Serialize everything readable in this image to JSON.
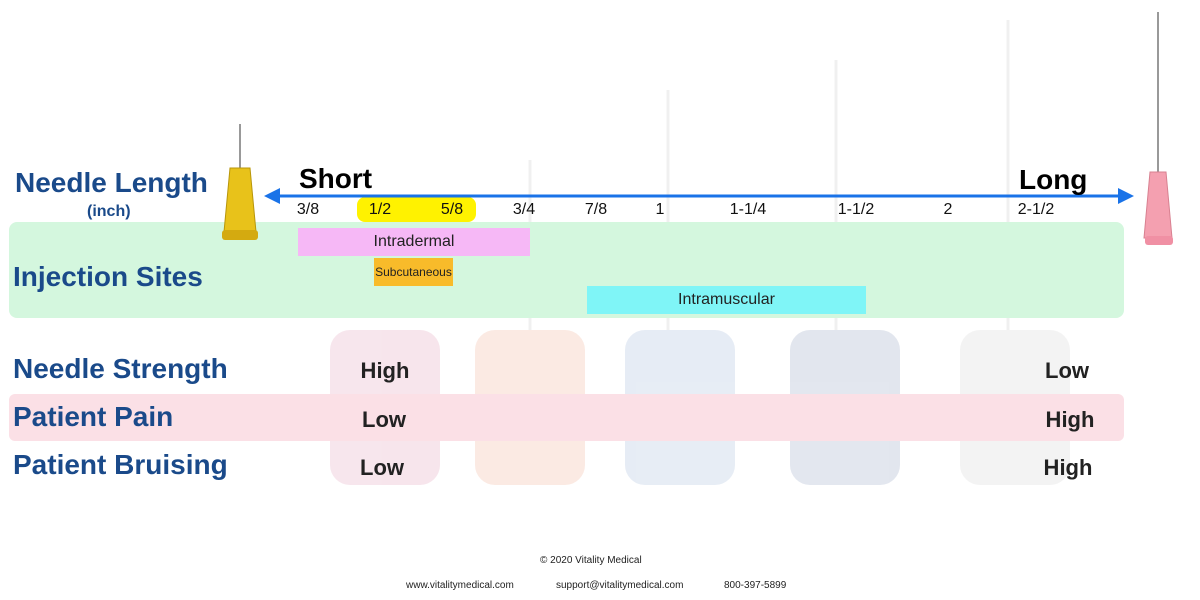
{
  "length": {
    "title": "Needle Length",
    "unit": "(inch)",
    "short": "Short",
    "long": "Long",
    "ticks": [
      "3/8",
      "1/2",
      "5/8",
      "3/4",
      "7/8",
      "1",
      "1-1/4",
      "1-1/2",
      "2",
      "2-1/2"
    ]
  },
  "injection": {
    "title": "Injection Sites",
    "sites": [
      "Intradermal",
      "Subcutaneous",
      "Intramuscular"
    ]
  },
  "rows": [
    {
      "label": "Needle Strength",
      "short": "High",
      "long": "Low"
    },
    {
      "label": "Patient Pain",
      "short": "Low",
      "long": "High"
    },
    {
      "label": "Patient Bruising",
      "short": "Low",
      "long": "High"
    }
  ],
  "footer": {
    "copyright": "© 2020    Vitality Medical",
    "website": "www.vitalitymedical.com",
    "email": "support@vitalitymedical.com",
    "phone": "800-397-5899"
  }
}
